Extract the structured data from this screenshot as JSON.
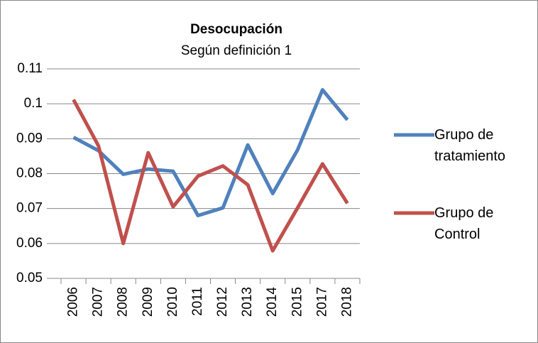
{
  "chart_data": {
    "type": "line",
    "title": "Desocupación",
    "subtitle": "Según definición 1",
    "categories": [
      "2006",
      "2007",
      "2008",
      "2009",
      "2010",
      "2011",
      "2012",
      "2013",
      "2014",
      "2015",
      "2017",
      "2018"
    ],
    "series": [
      {
        "name": "Grupo de tratamiento",
        "color": "#4f81bd",
        "values": [
          0.0904,
          0.0866,
          0.0798,
          0.0813,
          0.0807,
          0.068,
          0.0702,
          0.0882,
          0.0743,
          0.0868,
          0.104,
          0.0954
        ]
      },
      {
        "name": "Grupo de Control",
        "color": "#c0504d",
        "values": [
          0.1012,
          0.088,
          0.06,
          0.086,
          0.0705,
          0.0793,
          0.0822,
          0.0768,
          0.0579,
          0.0702,
          0.0828,
          0.0715
        ]
      }
    ],
    "ylim": [
      0.05,
      0.11
    ],
    "yticks": [
      0.05,
      0.06,
      0.07,
      0.08,
      0.09,
      0.1,
      0.11
    ],
    "grid": true,
    "legend": "right"
  }
}
